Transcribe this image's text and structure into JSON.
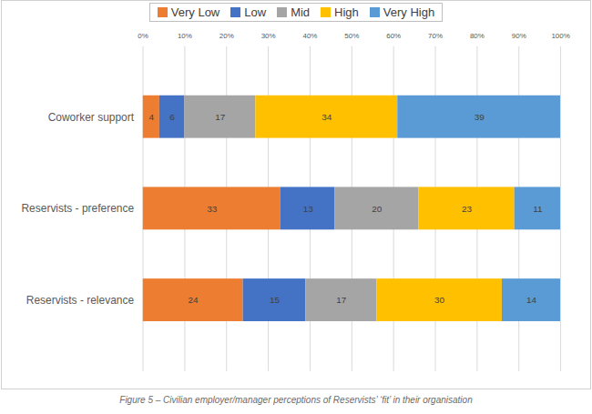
{
  "chart_data": {
    "type": "bar",
    "title": "Figure 5 – Civilian employer/manager perceptions of Reservists’ ‘fit’ in their organisation",
    "orientation": "horizontal",
    "stacked": true,
    "data_labels": true,
    "grid": true,
    "legend": "top",
    "categories": [
      "Coworker support",
      "Reservists - preference",
      "Reservists - relevance"
    ],
    "series": [
      {
        "name": "Very Low",
        "color": "#ed7d31",
        "values": [
          4,
          33,
          24
        ]
      },
      {
        "name": "Low",
        "color": "#4472c4",
        "values": [
          6,
          13,
          15
        ]
      },
      {
        "name": "Mid",
        "color": "#a5a5a5",
        "values": [
          17,
          20,
          17
        ]
      },
      {
        "name": "High",
        "color": "#ffc000",
        "values": [
          34,
          23,
          30
        ]
      },
      {
        "name": "Very High",
        "color": "#5b9bd5",
        "values": [
          39,
          11,
          14
        ]
      }
    ],
    "xlim": [
      0,
      100
    ],
    "xticks": [
      {
        "value": 0,
        "label": "0%"
      },
      {
        "value": 10,
        "label": "10%"
      },
      {
        "value": 20,
        "label": "20%"
      },
      {
        "value": 30,
        "label": "30%"
      },
      {
        "value": 40,
        "label": "40%"
      },
      {
        "value": 50,
        "label": "50%"
      },
      {
        "value": 60,
        "label": "60%"
      },
      {
        "value": 70,
        "label": "70%"
      },
      {
        "value": 80,
        "label": "80%"
      },
      {
        "value": 90,
        "label": "90%"
      },
      {
        "value": 100,
        "label": "100%"
      }
    ]
  }
}
